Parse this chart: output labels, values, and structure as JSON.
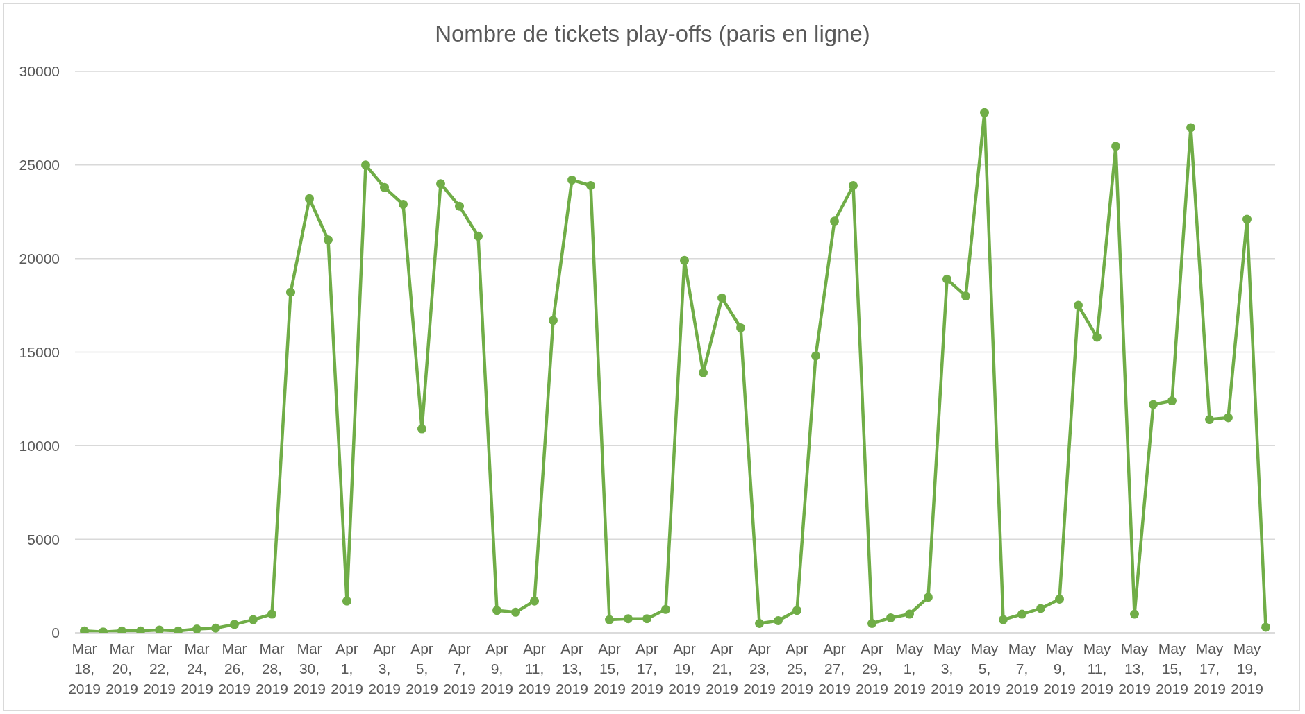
{
  "chart_data": {
    "type": "line",
    "title": "Nombre de tickets play-offs (paris en ligne)",
    "categories": [
      "Mar 18, 2019",
      null,
      "Mar 20, 2019",
      null,
      "Mar 22, 2019",
      null,
      "Mar 24, 2019",
      null,
      "Mar 26, 2019",
      null,
      "Mar 28, 2019",
      null,
      "Mar 30, 2019",
      null,
      "Apr 1, 2019",
      null,
      "Apr 3, 2019",
      null,
      "Apr 5, 2019",
      null,
      "Apr 7, 2019",
      null,
      "Apr 9, 2019",
      null,
      "Apr 11, 2019",
      null,
      "Apr 13, 2019",
      null,
      "Apr 15, 2019",
      null,
      "Apr 17, 2019",
      null,
      "Apr 19, 2019",
      null,
      "Apr 21, 2019",
      null,
      "Apr 23, 2019",
      null,
      "Apr 25, 2019",
      null,
      "Apr 27, 2019",
      null,
      "Apr 29, 2019",
      null,
      "May 1, 2019",
      null,
      "May 3, 2019",
      null,
      "May 5, 2019",
      null,
      "May 7, 2019",
      null,
      "May 9, 2019",
      null,
      "May 11, 2019",
      null,
      "May 13, 2019",
      null,
      "May 15, 2019",
      null,
      "May 17, 2019",
      null,
      "May 19, 2019",
      null
    ],
    "values": [
      100,
      50,
      100,
      100,
      150,
      100,
      200,
      250,
      450,
      700,
      1000,
      18200,
      23200,
      21000,
      1700,
      25000,
      23800,
      22900,
      10900,
      24000,
      22800,
      21200,
      1200,
      1100,
      1700,
      16700,
      24200,
      23900,
      700,
      750,
      750,
      1250,
      19900,
      13900,
      17900,
      16300,
      500,
      650,
      1200,
      14800,
      22000,
      23900,
      500,
      800,
      1000,
      1900,
      18900,
      18000,
      27800,
      700,
      1000,
      1300,
      1800,
      17500,
      15800,
      26000,
      1000,
      12200,
      12400,
      27000,
      11400,
      11500,
      22100,
      300
    ],
    "color": "#70ad47",
    "ylim": [
      0,
      30000
    ],
    "yticks": [
      0,
      5000,
      10000,
      15000,
      20000,
      25000,
      30000
    ],
    "grid": "y",
    "marker": "circle",
    "line_style": "solid"
  }
}
